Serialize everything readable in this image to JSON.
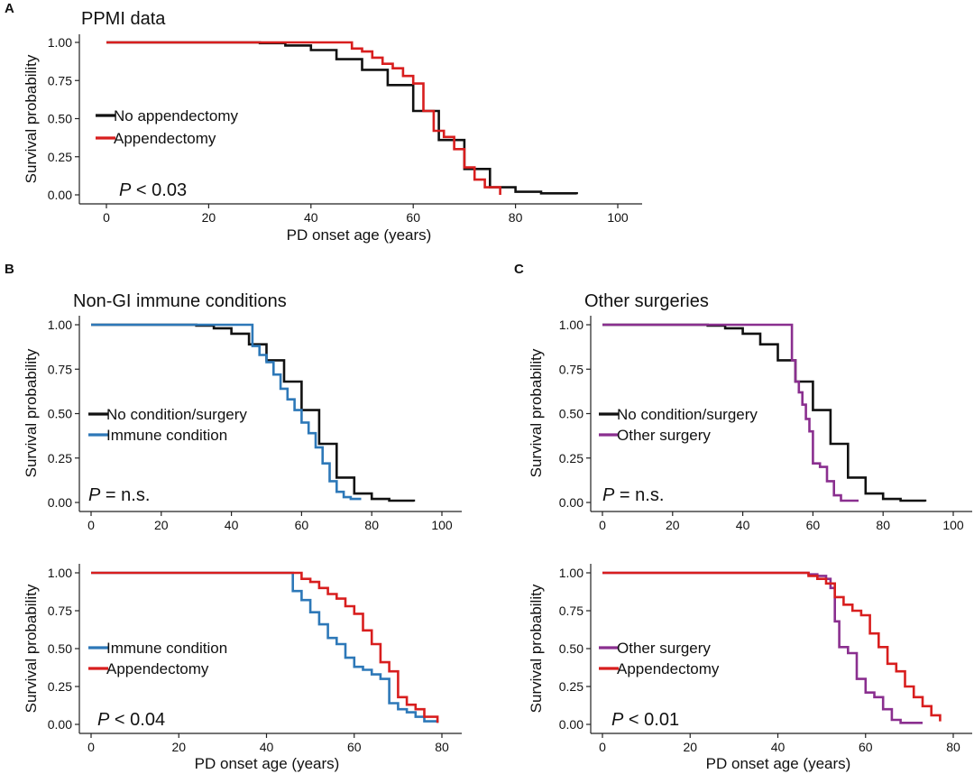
{
  "figure": {
    "panels": [
      {
        "letter": "A",
        "title": "PPMI data",
        "ylabel": "Survival probability",
        "xlabel": "PD onset age (years)",
        "pvalue_sym": "P",
        "pvalue_rest": " < 0.03",
        "legend": [
          "No appendectomy",
          "Appendectomy"
        ]
      },
      {
        "letter": "B",
        "title": "Non-GI immune conditions",
        "ylabel": "Survival probability",
        "xlabel": "",
        "pvalue_sym": "P",
        "pvalue_rest": " = n.s.",
        "legend": [
          "No condition/surgery",
          "Immune condition"
        ]
      },
      {
        "letter": "",
        "title": "",
        "ylabel": "Survival probability",
        "xlabel": "PD onset age (years)",
        "pvalue_sym": "P",
        "pvalue_rest": " < 0.04",
        "legend": [
          "Immune condition",
          "Appendectomy"
        ]
      },
      {
        "letter": "C",
        "title": "Other surgeries",
        "ylabel": "Survival probability",
        "xlabel": "",
        "pvalue_sym": "P",
        "pvalue_rest": " = n.s.",
        "legend": [
          "No condition/surgery",
          "Other surgery"
        ]
      },
      {
        "letter": "",
        "title": "",
        "ylabel": "Survival probability",
        "xlabel": "PD onset age (years)",
        "pvalue_sym": "P",
        "pvalue_rest": " < 0.01",
        "legend": [
          "Other surgery",
          "Appendectomy"
        ]
      }
    ]
  },
  "chart_data": [
    {
      "type": "line",
      "step": true,
      "title": "PPMI data",
      "xlabel": "PD onset age (years)",
      "ylabel": "Survival probability",
      "xlim": [
        0,
        100
      ],
      "ylim": [
        0,
        1
      ],
      "xticks": [
        0,
        20,
        40,
        60,
        80,
        100
      ],
      "yticks": [
        "0.00",
        "0.25",
        "0.50",
        "0.75",
        "1.00"
      ],
      "series": [
        {
          "name": "No appendectomy",
          "color": "#111111",
          "x": [
            0,
            25,
            30,
            35,
            40,
            45,
            50,
            55,
            60,
            65,
            70,
            75,
            80,
            85,
            92
          ],
          "y": [
            1.0,
            1.0,
            0.995,
            0.98,
            0.95,
            0.89,
            0.82,
            0.72,
            0.55,
            0.36,
            0.17,
            0.05,
            0.02,
            0.01,
            0.005
          ]
        },
        {
          "name": "Appendectomy",
          "color": "#d81e1e",
          "x": [
            0,
            46,
            48,
            50,
            52,
            54,
            56,
            58,
            60,
            62,
            64,
            66,
            68,
            70,
            72,
            74,
            77
          ],
          "y": [
            1.0,
            1.0,
            0.96,
            0.94,
            0.9,
            0.86,
            0.83,
            0.78,
            0.73,
            0.55,
            0.42,
            0.38,
            0.3,
            0.18,
            0.1,
            0.05,
            0.0
          ]
        }
      ],
      "annotation": "P < 0.03",
      "legend_position": "left-middle"
    },
    {
      "type": "line",
      "step": true,
      "title": "Non-GI immune conditions",
      "xlabel": "",
      "ylabel": "Survival probability",
      "xlim": [
        0,
        100
      ],
      "ylim": [
        0,
        1
      ],
      "xticks": [
        0,
        20,
        40,
        60,
        80,
        100
      ],
      "yticks": [
        "0.00",
        "0.25",
        "0.50",
        "0.75",
        "1.00"
      ],
      "series": [
        {
          "name": "No condition/surgery",
          "color": "#111111",
          "x": [
            0,
            25,
            30,
            35,
            40,
            45,
            50,
            55,
            60,
            65,
            70,
            75,
            80,
            85,
            92
          ],
          "y": [
            1.0,
            1.0,
            0.995,
            0.98,
            0.95,
            0.89,
            0.8,
            0.68,
            0.52,
            0.33,
            0.14,
            0.05,
            0.02,
            0.01,
            0.005
          ]
        },
        {
          "name": "Immune condition",
          "color": "#2d78b8",
          "x": [
            0,
            44,
            46,
            48,
            50,
            52,
            54,
            56,
            58,
            60,
            62,
            64,
            66,
            68,
            70,
            72,
            74,
            77
          ],
          "y": [
            1.0,
            1.0,
            0.88,
            0.83,
            0.79,
            0.72,
            0.64,
            0.58,
            0.52,
            0.45,
            0.39,
            0.31,
            0.22,
            0.12,
            0.06,
            0.03,
            0.02,
            0.02
          ]
        }
      ],
      "annotation": "P = n.s.",
      "legend_position": "left-middle"
    },
    {
      "type": "line",
      "step": true,
      "title": "",
      "xlabel": "PD onset age (years)",
      "ylabel": "Survival probability",
      "xlim": [
        0,
        80
      ],
      "ylim": [
        0,
        1
      ],
      "xticks": [
        0,
        20,
        40,
        60,
        80
      ],
      "yticks": [
        "0.00",
        "0.25",
        "0.50",
        "0.75",
        "1.00"
      ],
      "series": [
        {
          "name": "Immune condition",
          "color": "#2d78b8",
          "x": [
            0,
            44,
            46,
            48,
            50,
            52,
            54,
            56,
            58,
            60,
            62,
            64,
            66,
            68,
            70,
            72,
            74,
            76,
            79
          ],
          "y": [
            1.0,
            1.0,
            0.88,
            0.82,
            0.74,
            0.66,
            0.57,
            0.53,
            0.44,
            0.38,
            0.36,
            0.33,
            0.3,
            0.14,
            0.1,
            0.08,
            0.05,
            0.02,
            0.01
          ]
        },
        {
          "name": "Appendectomy",
          "color": "#d81e1e",
          "x": [
            0,
            46,
            48,
            50,
            52,
            54,
            56,
            58,
            60,
            62,
            64,
            66,
            68,
            70,
            72,
            74,
            76,
            79
          ],
          "y": [
            1.0,
            1.0,
            0.96,
            0.94,
            0.9,
            0.86,
            0.83,
            0.78,
            0.73,
            0.62,
            0.53,
            0.41,
            0.35,
            0.18,
            0.13,
            0.1,
            0.05,
            0.01
          ]
        }
      ],
      "annotation": "P < 0.04",
      "legend_position": "left-middle"
    },
    {
      "type": "line",
      "step": true,
      "title": "Other surgeries",
      "xlabel": "",
      "ylabel": "Survival probability",
      "xlim": [
        0,
        100
      ],
      "ylim": [
        0,
        1
      ],
      "xticks": [
        0,
        20,
        40,
        60,
        80,
        100
      ],
      "yticks": [
        "0.00",
        "0.25",
        "0.50",
        "0.75",
        "1.00"
      ],
      "series": [
        {
          "name": "No condition/surgery",
          "color": "#111111",
          "x": [
            0,
            25,
            30,
            35,
            40,
            45,
            50,
            55,
            60,
            65,
            70,
            75,
            80,
            85,
            92
          ],
          "y": [
            1.0,
            1.0,
            0.995,
            0.98,
            0.95,
            0.89,
            0.8,
            0.68,
            0.52,
            0.33,
            0.14,
            0.05,
            0.02,
            0.01,
            0.005
          ]
        },
        {
          "name": "Other surgery",
          "color": "#8a2f8f",
          "x": [
            0,
            53,
            54,
            55,
            56,
            57,
            58,
            59,
            60,
            62,
            64,
            66,
            68,
            70,
            73
          ],
          "y": [
            1.0,
            1.0,
            0.8,
            0.68,
            0.62,
            0.55,
            0.47,
            0.4,
            0.22,
            0.2,
            0.12,
            0.04,
            0.01,
            0.01,
            0.01
          ]
        }
      ],
      "annotation": "P = n.s.",
      "legend_position": "left-middle"
    },
    {
      "type": "line",
      "step": true,
      "title": "",
      "xlabel": "PD onset age (years)",
      "ylabel": "Survival probability",
      "xlim": [
        0,
        80
      ],
      "ylim": [
        0,
        1
      ],
      "xticks": [
        0,
        20,
        40,
        60,
        80
      ],
      "yticks": [
        "0.00",
        "0.25",
        "0.50",
        "0.75",
        "1.00"
      ],
      "series": [
        {
          "name": "Other surgery",
          "color": "#8a2f8f",
          "x": [
            0,
            45,
            47,
            49,
            51,
            52,
            53,
            54,
            56,
            58,
            60,
            62,
            64,
            66,
            68,
            73
          ],
          "y": [
            1.0,
            1.0,
            0.99,
            0.98,
            0.96,
            0.9,
            0.68,
            0.51,
            0.47,
            0.3,
            0.21,
            0.18,
            0.1,
            0.03,
            0.01,
            0.01
          ]
        },
        {
          "name": "Appendectomy",
          "color": "#d81e1e",
          "x": [
            0,
            45,
            47,
            49,
            51,
            53,
            55,
            57,
            59,
            61,
            63,
            65,
            67,
            69,
            71,
            73,
            75,
            77
          ],
          "y": [
            1.0,
            1.0,
            0.98,
            0.96,
            0.93,
            0.84,
            0.79,
            0.75,
            0.72,
            0.6,
            0.51,
            0.4,
            0.35,
            0.25,
            0.18,
            0.12,
            0.06,
            0.02
          ]
        }
      ],
      "annotation": "P < 0.01",
      "legend_position": "left-middle"
    }
  ]
}
